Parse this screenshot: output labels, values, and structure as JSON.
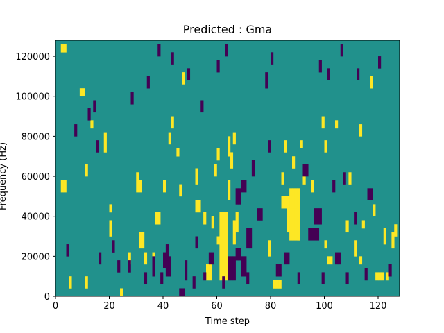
{
  "chart_data": {
    "type": "heatmap",
    "title": "Predicted : Gma",
    "xlabel": "Time step",
    "ylabel": "Frequency (Hz)",
    "xlim": [
      0,
      128
    ],
    "ylim": [
      0,
      128000
    ],
    "x_ticks": [
      0,
      20,
      40,
      60,
      80,
      100,
      120
    ],
    "y_ticks": [
      0,
      20000,
      40000,
      60000,
      80000,
      100000,
      120000
    ],
    "n_time_steps": 128,
    "n_frequency_bins": 64,
    "colors": {
      "background": "#21918c",
      "high": "#fde725",
      "low": "#440154"
    },
    "cells": {
      "high": [
        [
          61,
          4,
          20
        ],
        [
          62,
          4,
          20
        ],
        [
          63,
          4,
          20
        ],
        [
          64,
          35,
          39
        ],
        [
          64,
          24,
          28
        ],
        [
          65,
          32,
          35
        ],
        [
          86,
          16,
          24
        ],
        [
          87,
          14,
          26
        ],
        [
          88,
          14,
          26
        ],
        [
          89,
          14,
          26
        ],
        [
          90,
          14,
          26
        ],
        [
          84,
          22,
          24
        ],
        [
          85,
          22,
          24
        ],
        [
          87,
          20,
          21
        ],
        [
          88,
          20,
          21
        ],
        [
          89,
          20,
          21
        ],
        [
          30,
          26,
          30
        ],
        [
          31,
          26,
          28
        ],
        [
          31,
          12,
          15
        ],
        [
          32,
          12,
          15
        ],
        [
          37,
          18,
          20
        ],
        [
          38,
          18,
          20
        ],
        [
          52,
          21,
          23
        ],
        [
          53,
          21,
          23
        ],
        [
          18,
          36,
          40
        ],
        [
          20,
          21,
          22
        ],
        [
          60,
          13,
          14
        ],
        [
          2,
          26,
          28
        ],
        [
          3,
          26,
          28
        ],
        [
          2,
          61,
          62
        ],
        [
          3,
          61,
          62
        ],
        [
          24,
          0,
          1
        ],
        [
          56,
          4,
          7
        ],
        [
          57,
          4,
          7
        ],
        [
          58,
          17,
          19
        ],
        [
          81,
          2,
          3
        ],
        [
          82,
          2,
          3
        ],
        [
          83,
          2,
          3
        ],
        [
          5,
          2,
          4
        ],
        [
          11,
          2,
          4
        ],
        [
          111,
          10,
          13
        ],
        [
          119,
          4,
          5
        ],
        [
          120,
          4,
          5
        ],
        [
          121,
          4,
          5
        ],
        [
          123,
          4,
          5
        ],
        [
          9,
          50,
          51
        ],
        [
          10,
          50,
          51
        ],
        [
          13,
          42,
          43
        ],
        [
          42,
          38,
          40
        ],
        [
          43,
          42,
          44
        ],
        [
          45,
          35,
          36
        ],
        [
          47,
          53,
          55
        ],
        [
          66,
          13,
          18
        ],
        [
          67,
          16,
          20
        ],
        [
          85,
          36,
          38
        ],
        [
          90,
          14,
          15
        ],
        [
          88,
          32,
          34
        ],
        [
          91,
          37,
          38
        ],
        [
          99,
          42,
          44
        ],
        [
          100,
          12,
          13
        ],
        [
          101,
          8,
          9
        ],
        [
          102,
          8,
          9
        ],
        [
          104,
          42,
          43
        ],
        [
          108,
          16,
          18
        ],
        [
          113,
          8,
          9
        ],
        [
          114,
          17,
          18
        ],
        [
          118,
          20,
          22
        ],
        [
          122,
          13,
          16
        ],
        [
          126,
          15,
          17
        ],
        [
          11,
          30,
          32
        ],
        [
          20,
          15,
          18
        ],
        [
          27,
          8,
          10
        ],
        [
          33,
          8,
          10
        ],
        [
          36,
          8,
          10
        ],
        [
          40,
          26,
          28
        ],
        [
          46,
          25,
          27
        ],
        [
          52,
          28,
          31
        ],
        [
          55,
          18,
          20
        ],
        [
          59,
          30,
          32
        ],
        [
          60,
          34,
          36
        ],
        [
          66,
          38,
          40
        ],
        [
          79,
          10,
          13
        ],
        [
          84,
          28,
          30
        ],
        [
          92,
          28,
          30
        ],
        [
          95,
          26,
          28
        ],
        [
          100,
          36,
          38
        ],
        [
          109,
          28,
          30
        ],
        [
          113,
          40,
          42
        ],
        [
          117,
          52,
          54
        ],
        [
          125,
          12,
          15
        ]
      ],
      "low": [
        [
          46,
          0,
          1
        ],
        [
          47,
          0,
          1
        ],
        [
          41,
          5,
          9
        ],
        [
          42,
          5,
          9
        ],
        [
          52,
          12,
          14
        ],
        [
          55,
          4,
          5
        ],
        [
          57,
          8,
          10
        ],
        [
          64,
          4,
          9
        ],
        [
          65,
          4,
          9
        ],
        [
          66,
          4,
          9
        ],
        [
          67,
          9,
          11
        ],
        [
          68,
          9,
          11
        ],
        [
          69,
          5,
          9
        ],
        [
          70,
          5,
          9
        ],
        [
          71,
          12,
          16
        ],
        [
          72,
          12,
          16
        ],
        [
          94,
          14,
          16
        ],
        [
          95,
          14,
          16
        ],
        [
          96,
          14,
          16
        ],
        [
          97,
          14,
          16
        ],
        [
          96,
          18,
          21
        ],
        [
          97,
          18,
          21
        ],
        [
          98,
          18,
          21
        ],
        [
          85,
          8,
          10
        ],
        [
          86,
          8,
          10
        ],
        [
          82,
          5,
          7
        ],
        [
          83,
          5,
          7
        ],
        [
          104,
          8,
          10
        ],
        [
          105,
          8,
          10
        ],
        [
          21,
          11,
          13
        ],
        [
          36,
          5,
          9
        ],
        [
          40,
          7,
          10
        ],
        [
          41,
          9,
          12
        ],
        [
          48,
          4,
          8
        ],
        [
          58,
          8,
          10
        ],
        [
          67,
          23,
          26
        ],
        [
          68,
          23,
          26
        ],
        [
          69,
          26,
          28
        ],
        [
          70,
          26,
          28
        ],
        [
          73,
          30,
          33
        ],
        [
          75,
          19,
          21
        ],
        [
          76,
          19,
          21
        ],
        [
          79,
          36,
          38
        ],
        [
          92,
          30,
          32
        ],
        [
          93,
          30,
          32
        ],
        [
          103,
          26,
          28
        ],
        [
          107,
          28,
          30
        ],
        [
          111,
          18,
          20
        ],
        [
          116,
          24,
          26
        ],
        [
          117,
          24,
          26
        ],
        [
          7,
          40,
          42
        ],
        [
          12,
          44,
          46
        ],
        [
          14,
          46,
          48
        ],
        [
          15,
          36,
          38
        ],
        [
          28,
          48,
          50
        ],
        [
          34,
          52,
          54
        ],
        [
          38,
          60,
          62
        ],
        [
          43,
          58,
          60
        ],
        [
          49,
          54,
          56
        ],
        [
          54,
          46,
          48
        ],
        [
          60,
          56,
          58
        ],
        [
          63,
          60,
          62
        ],
        [
          78,
          52,
          55
        ],
        [
          80,
          58,
          60
        ],
        [
          98,
          56,
          58
        ],
        [
          101,
          54,
          56
        ],
        [
          106,
          60,
          62
        ],
        [
          112,
          54,
          56
        ],
        [
          120,
          57,
          59
        ],
        [
          4,
          10,
          12
        ],
        [
          16,
          8,
          10
        ],
        [
          23,
          6,
          8
        ],
        [
          27,
          6,
          8
        ],
        [
          33,
          3,
          5
        ],
        [
          39,
          3,
          5
        ],
        [
          51,
          2,
          4
        ],
        [
          62,
          2,
          4
        ],
        [
          71,
          3,
          5
        ],
        [
          90,
          3,
          5
        ],
        [
          99,
          3,
          5
        ],
        [
          108,
          3,
          5
        ],
        [
          115,
          4,
          6
        ],
        [
          124,
          5,
          7
        ]
      ]
    }
  }
}
